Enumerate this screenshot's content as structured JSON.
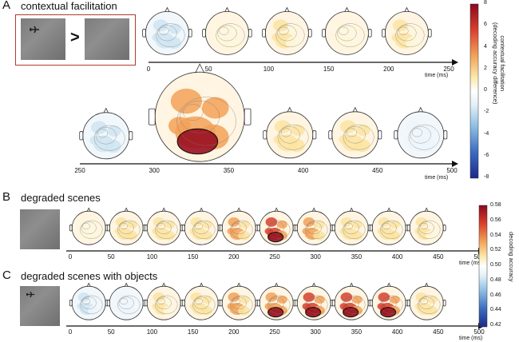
{
  "panels": {
    "A": {
      "letter": "A",
      "title": "contextual facilitation",
      "comparison_symbol": ">",
      "axis1": {
        "ticks": [
          "0",
          "50",
          "100",
          "150",
          "200",
          "250"
        ],
        "unit": "time (ms)"
      },
      "axis2": {
        "ticks": [
          "250",
          "300",
          "350",
          "400",
          "450",
          "500"
        ],
        "unit": "time (ms)"
      },
      "colorbar": {
        "ticks": [
          "8",
          "6",
          "4",
          "2",
          "0",
          "-2",
          "-4",
          "-6",
          "-8"
        ],
        "label_line1": "contextual facilitation",
        "label_line2": "(decoding accuracy difference)"
      }
    },
    "B": {
      "letter": "B",
      "title": "degraded scenes",
      "axis": {
        "ticks": [
          "0",
          "50",
          "100",
          "150",
          "200",
          "250",
          "300",
          "350",
          "400",
          "450",
          "500"
        ],
        "unit": "time (ms)"
      }
    },
    "C": {
      "letter": "C",
      "title": "degraded scenes with objects",
      "axis": {
        "ticks": [
          "0",
          "50",
          "100",
          "150",
          "200",
          "250",
          "300",
          "350",
          "400",
          "450",
          "500"
        ],
        "unit": "time (ms)"
      }
    },
    "BC_colorbar": {
      "ticks": [
        "0.58",
        "0.56",
        "0.54",
        "0.52",
        "0.50",
        "0.48",
        "0.46",
        "0.44",
        "0.42"
      ],
      "label": "decoding accuracy"
    }
  },
  "colors": {
    "frame_red": "#b03a2e",
    "diverging": [
      "#1c2a8a",
      "#3c6cc0",
      "#8fc0e4",
      "#e3f0f6",
      "#ffffff",
      "#fbe8a8",
      "#f2a45a",
      "#d9402c",
      "#8a0a1e"
    ]
  },
  "heads": {
    "A_row1": [
      -0.1,
      -0.3,
      0.1,
      0.15,
      0.1,
      0.15
    ],
    "A_row2": [
      -0.2,
      0.6,
      0.35,
      0.3,
      0.0
    ],
    "B": [
      0.1,
      0.2,
      0.25,
      0.3,
      0.5,
      0.75,
      0.4,
      0.25,
      0.25,
      0.15,
      0.15
    ],
    "C": [
      -0.15,
      0.0,
      0.15,
      0.25,
      0.5,
      0.55,
      0.65,
      0.8,
      0.65,
      0.3,
      0.3
    ]
  },
  "icons": {
    "head": "head-topomap-icon",
    "airplane": "airplane-icon",
    "arrow": "axis-arrow-icon"
  }
}
